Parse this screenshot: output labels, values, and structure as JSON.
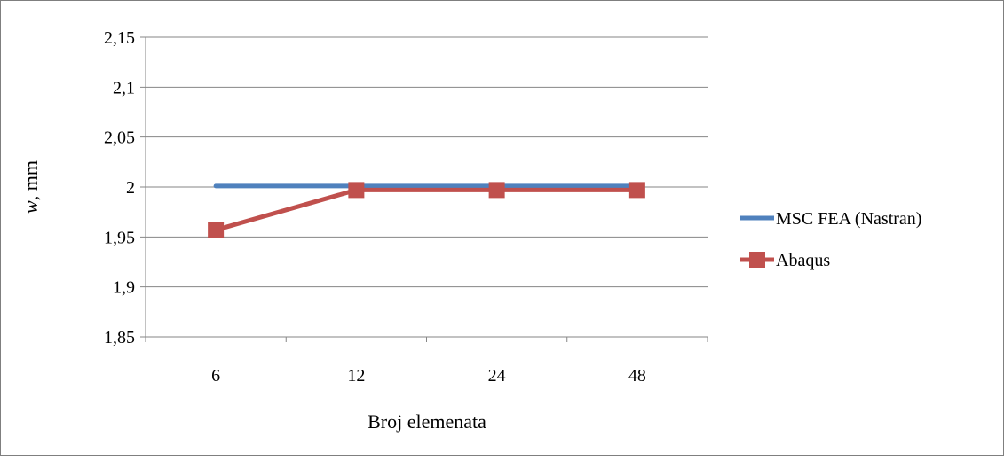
{
  "chart_data": {
    "type": "line",
    "categories": [
      "6",
      "12",
      "24",
      "48"
    ],
    "series": [
      {
        "name": "MSC FEA (Nastran)",
        "values": [
          2.001,
          2.001,
          2.001,
          2.001
        ],
        "color": "#4f81bd",
        "marker": "none"
      },
      {
        "name": "Abaqus",
        "values": [
          1.957,
          1.997,
          1.997,
          1.997
        ],
        "color": "#c0504d",
        "marker": "square"
      }
    ],
    "yticks": [
      "1,85",
      "1,9",
      "1,95",
      "2",
      "2,05",
      "2,1",
      "2,15"
    ],
    "ylim": [
      1.85,
      2.15
    ],
    "ylabel_italic": "w",
    "ylabel_rest": ", mm",
    "xlabel": "Broj elemenata",
    "grid": true,
    "legend_position": "right"
  }
}
